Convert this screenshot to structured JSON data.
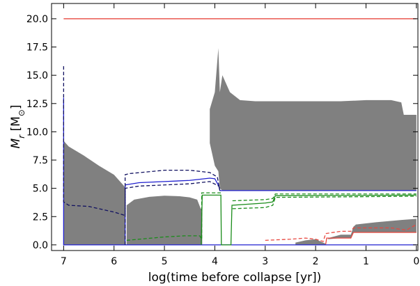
{
  "chart_data": {
    "type": "kippenhahn",
    "xlabel": "log(time before collapse [yr])",
    "ylabel": [
      {
        "text": "M"
      },
      {
        "text": "r",
        "sub": true
      },
      {
        "text": " [M"
      },
      {
        "text": "⊙",
        "sub": true
      },
      {
        "text": "]"
      }
    ],
    "xlim": [
      7.24,
      -0.03
    ],
    "ylim": [
      -0.5,
      21.35
    ],
    "xticks": [
      7,
      6,
      5,
      4,
      3,
      2,
      1,
      0
    ],
    "yticks": [
      {
        "value": 0,
        "label": "0.0"
      },
      {
        "value": 2.5,
        "label": "2.5"
      },
      {
        "value": 5,
        "label": "5.0"
      },
      {
        "value": 7.5,
        "label": "7.5"
      },
      {
        "value": 10,
        "label": "10.0"
      },
      {
        "value": 12.5,
        "label": "12.5"
      },
      {
        "value": 15,
        "label": "15.0"
      },
      {
        "value": 17.5,
        "label": "17.5"
      },
      {
        "value": 20,
        "label": "20.0"
      }
    ],
    "areas": [
      {
        "color": "#808080",
        "x": [
          7.0,
          6.9,
          6.6,
          6.3,
          6.0,
          5.8,
          5.78
        ],
        "upper": [
          9.2,
          8.7,
          7.9,
          7.0,
          6.2,
          5.2,
          5.0
        ],
        "lower": [
          0,
          0,
          0,
          0,
          0,
          0,
          0
        ]
      },
      {
        "color": "#808080",
        "x": [
          5.75,
          5.6,
          5.3,
          5.0,
          4.7,
          4.5,
          4.35,
          4.28,
          4.25
        ],
        "upper": [
          3.5,
          4.0,
          4.25,
          4.35,
          4.3,
          4.2,
          4.0,
          3.2,
          3.2
        ],
        "lower": [
          0,
          0,
          0,
          0,
          0,
          0,
          0,
          0,
          0
        ]
      },
      {
        "color": "#808080",
        "x": [
          4.1,
          4.0,
          3.93,
          3.9,
          3.85,
          3.7,
          3.5,
          3.2,
          3.0,
          2.5,
          2.0,
          1.5,
          1.0,
          0.5,
          0.3,
          0.25,
          0.0
        ],
        "upper": [
          12.0,
          13.5,
          17.4,
          13.5,
          15.0,
          13.5,
          12.8,
          12.7,
          12.7,
          12.7,
          12.7,
          12.7,
          12.8,
          12.8,
          12.6,
          11.5,
          11.5
        ],
        "lower": [
          9.0,
          7.0,
          6.5,
          5.0,
          4.8,
          4.8,
          4.8,
          4.8,
          4.8,
          4.8,
          4.8,
          4.8,
          4.8,
          4.8,
          4.8,
          4.8,
          4.8
        ]
      },
      {
        "color": "#808080",
        "x": [
          2.4,
          2.2,
          2.0,
          1.8
        ],
        "upper": [
          0.2,
          0.4,
          0.5,
          0.1
        ],
        "lower": [
          0,
          0,
          0,
          0
        ]
      },
      {
        "color": "#808080",
        "x": [
          1.75,
          1.5,
          1.3,
          1.25,
          1.2,
          0.8,
          0.3,
          0.0
        ],
        "upper": [
          0.6,
          0.9,
          0.9,
          1.6,
          1.8,
          2.0,
          2.2,
          2.3
        ],
        "lower": [
          0.5,
          0.6,
          0.6,
          1.1,
          1.1,
          1.1,
          1.1,
          1.1
        ]
      }
    ],
    "series": [
      {
        "color": "#e8473f",
        "dash": false,
        "x": [
          7,
          0
        ],
        "values": [
          20,
          20
        ]
      },
      {
        "color": "#1f1fd0",
        "dash": false,
        "x": [
          7,
          7,
          7,
          0
        ],
        "values": [
          0,
          13,
          0,
          0
        ]
      },
      {
        "color": "#1f1fd0",
        "dash": false,
        "x": [
          5.78,
          5.78,
          5.5,
          5.0,
          4.5,
          4.1,
          4.0,
          3.92,
          3.9,
          0
        ],
        "values": [
          0,
          5.3,
          5.5,
          5.6,
          5.7,
          5.9,
          5.85,
          5.2,
          4.8,
          4.8
        ]
      },
      {
        "color": "#101060",
        "dash": true,
        "x": [
          7.0,
          7.0,
          6.9,
          6.5,
          6.0,
          5.78,
          5.78,
          5.7,
          5.0,
          4.5,
          4.1,
          3.95,
          3.9
        ],
        "values": [
          15.8,
          3.8,
          3.5,
          3.4,
          2.9,
          2.6,
          6.2,
          6.3,
          6.6,
          6.6,
          6.4,
          6.0,
          4.8
        ]
      },
      {
        "color": "#101060",
        "dash": true,
        "x": [
          5.78,
          5.78,
          5.5,
          5.0,
          4.5,
          4.1,
          3.92,
          3.9
        ],
        "values": [
          0,
          5.0,
          5.2,
          5.3,
          5.4,
          5.6,
          5.2,
          4.8
        ]
      },
      {
        "color": "#1a8c1a",
        "dash": false,
        "x": [
          4.27,
          4.25,
          3.88,
          3.87,
          3.68,
          3.66,
          3.0,
          2.85,
          2.8,
          0.0
        ],
        "values": [
          0,
          4.4,
          4.4,
          0,
          0,
          3.5,
          3.7,
          3.8,
          4.35,
          4.4
        ]
      },
      {
        "color": "#1a8c1a",
        "dash": true,
        "x": [
          5.75,
          5.5,
          5.0,
          4.6,
          4.3,
          4.26,
          4.26,
          3.88
        ],
        "values": [
          0.4,
          0.5,
          0.7,
          0.8,
          0.8,
          0.5,
          4.6,
          4.6
        ]
      },
      {
        "color": "#1a8c1a",
        "dash": true,
        "x": [
          3.65,
          3.0,
          2.85,
          2.8,
          0
        ],
        "values": [
          3.9,
          4.0,
          4.1,
          4.5,
          4.5
        ]
      },
      {
        "color": "#1a8c1a",
        "dash": true,
        "x": [
          3.65,
          3.0,
          2.85,
          2.8,
          0
        ],
        "values": [
          3.2,
          3.3,
          3.5,
          4.2,
          4.3
        ]
      },
      {
        "color": "#e8473f",
        "dash": true,
        "x": [
          3.0,
          2.5,
          2.2,
          2.0,
          1.85,
          1.8,
          1.5,
          1.3,
          1.25,
          0.5,
          0.2,
          0
        ],
        "values": [
          0.4,
          0.5,
          0.6,
          0.5,
          0.3,
          1.0,
          1.2,
          1.2,
          1.5,
          1.5,
          1.3,
          1.8
        ]
      },
      {
        "color": "#e8473f",
        "dash": false,
        "x": [
          1.8,
          1.78,
          1.3,
          1.25,
          0
        ],
        "values": [
          0.05,
          0.6,
          0.6,
          1.1,
          1.1
        ]
      }
    ]
  }
}
